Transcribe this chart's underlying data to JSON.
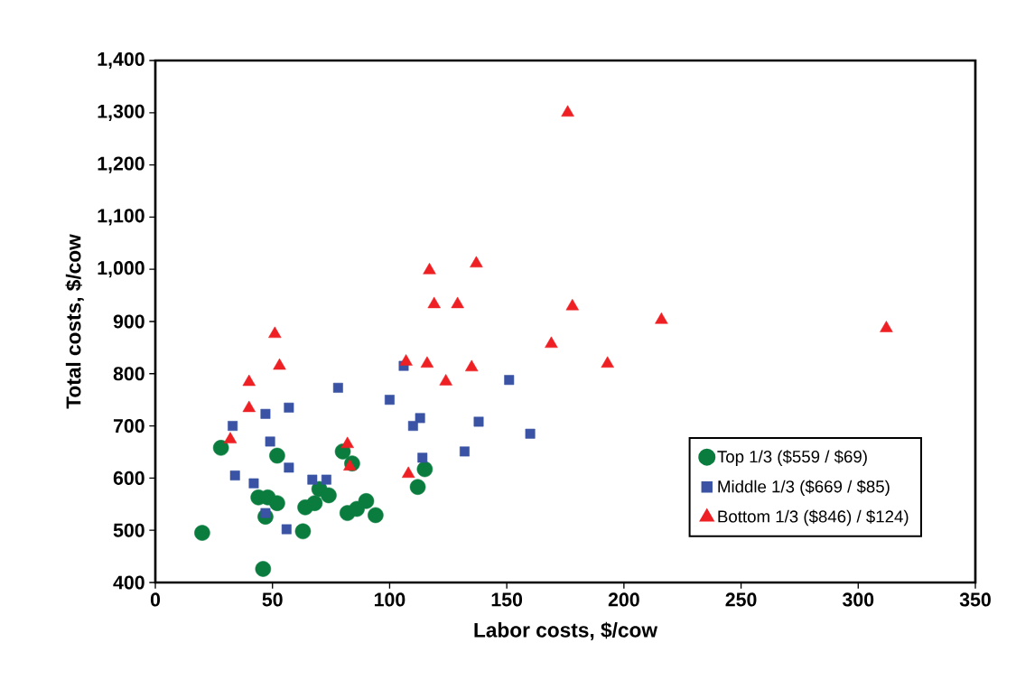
{
  "chart_data": {
    "type": "scatter",
    "xlabel": "Labor costs, $/cow",
    "ylabel": "Total costs, $/cow",
    "xlim": [
      0,
      350
    ],
    "xticks": [
      0,
      50,
      100,
      150,
      200,
      250,
      300,
      350
    ],
    "ylim": [
      400,
      1400
    ],
    "yticks": [
      {
        "value": 400,
        "label": "400"
      },
      {
        "value": 500,
        "label": "500"
      },
      {
        "value": 600,
        "label": "600"
      },
      {
        "value": 700,
        "label": "700"
      },
      {
        "value": 800,
        "label": "800"
      },
      {
        "value": 900,
        "label": "900"
      },
      {
        "value": 1000,
        "label": "1,000"
      },
      {
        "value": 1100,
        "label": "1,100"
      },
      {
        "value": 1200,
        "label": "1,200"
      },
      {
        "value": 1300,
        "label": "1,300"
      },
      {
        "value": 1400,
        "label": "1,400"
      }
    ],
    "grid": false,
    "legend": "bottom right",
    "series": [
      {
        "name": "Top 1/3 ($559 / $69)",
        "color": "#0a7d3e",
        "marker": "circle",
        "x": [
          20,
          28,
          52,
          44,
          48,
          52,
          47,
          46,
          63,
          64,
          68,
          70,
          74,
          80,
          84,
          82,
          86,
          90,
          94,
          115,
          112
        ],
        "values": [
          495,
          658,
          643,
          563,
          563,
          552,
          526,
          426,
          498,
          544,
          552,
          579,
          567,
          651,
          628,
          533,
          541,
          556,
          529,
          617,
          583
        ]
      },
      {
        "name": "Middle 1/3 ($669 / $85)",
        "color": "#3a53a4",
        "marker": "square",
        "x": [
          33,
          47,
          57,
          78,
          100,
          113,
          110,
          49,
          57,
          114,
          34,
          42,
          67,
          73,
          47,
          56,
          106,
          138,
          151,
          160,
          132
        ],
        "values": [
          700,
          723,
          735,
          773,
          750,
          715,
          700,
          670,
          620,
          639,
          605,
          590,
          597,
          597,
          533,
          502,
          815,
          708,
          788,
          685,
          651
        ]
      },
      {
        "name": "Bottom 1/3 ($846) / $124)",
        "color": "#ee2024",
        "marker": "triangle",
        "x": [
          40,
          40,
          32,
          82,
          83,
          108,
          53,
          51,
          117,
          119,
          129,
          107,
          116,
          124,
          135,
          137,
          176,
          178,
          169,
          193,
          216,
          312
        ],
        "values": [
          784,
          734,
          674,
          665,
          622,
          608,
          815,
          876,
          998,
          933,
          933,
          823,
          819,
          785,
          812,
          1011,
          1300,
          929,
          857,
          819,
          903,
          887
        ]
      }
    ]
  }
}
